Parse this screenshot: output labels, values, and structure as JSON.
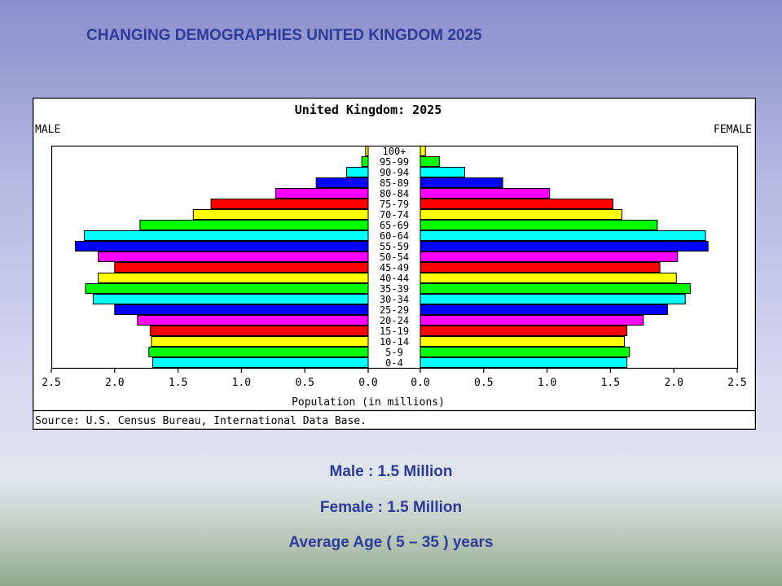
{
  "slide": {
    "title": "CHANGING DEMOGRAPHIES UNITED KINGDOM 2025",
    "caption_male": "Male : 1.5 Million",
    "caption_female": "Female : 1.5 Million",
    "caption_age": "Average Age ( 5 – 35 ) years"
  },
  "chart_data": {
    "type": "bar",
    "title": "United Kingdom: 2025",
    "left_label": "MALE",
    "right_label": "FEMALE",
    "xlabel": "Population (in millions)",
    "source": "Source: U.S. Census Bureau, International Data Base.",
    "xlim": [
      0,
      2.5
    ],
    "left_ticks": [
      "2.5",
      "2.0",
      "1.5",
      "1.0",
      "0.5",
      "0.0"
    ],
    "right_ticks": [
      "0.0",
      "0.5",
      "1.0",
      "1.5",
      "2.0",
      "2.5"
    ],
    "categories": [
      "100+",
      "95-99",
      "90-94",
      "85-89",
      "80-84",
      "75-79",
      "70-74",
      "65-69",
      "60-64",
      "55-59",
      "50-54",
      "45-49",
      "40-44",
      "35-39",
      "30-34",
      "25-29",
      "20-24",
      "15-19",
      "10-14",
      "5-9",
      "0-4"
    ],
    "series": [
      {
        "name": "MALE",
        "values": [
          0.02,
          0.05,
          0.17,
          0.41,
          0.73,
          1.24,
          1.38,
          1.8,
          2.24,
          2.31,
          2.13,
          2.0,
          2.13,
          2.23,
          2.17,
          2.0,
          1.82,
          1.72,
          1.71,
          1.73,
          1.7
        ]
      },
      {
        "name": "FEMALE",
        "values": [
          0.04,
          0.15,
          0.35,
          0.65,
          1.02,
          1.52,
          1.59,
          1.87,
          2.25,
          2.27,
          2.03,
          1.89,
          2.02,
          2.13,
          2.09,
          1.95,
          1.76,
          1.63,
          1.61,
          1.65,
          1.63
        ]
      }
    ],
    "bar_colors": [
      "#ffff00",
      "#00ff00",
      "#00ffff",
      "#0000ff",
      "#ff00ff",
      "#ff0000",
      "#ffff00",
      "#00ff00",
      "#00ffff",
      "#0000ff",
      "#ff00ff",
      "#ff0000",
      "#ffff00",
      "#00ff00",
      "#00ffff",
      "#0000ff",
      "#ff00ff",
      "#ff0000",
      "#ffff00",
      "#00ff00",
      "#00ffff"
    ],
    "grid": false
  }
}
